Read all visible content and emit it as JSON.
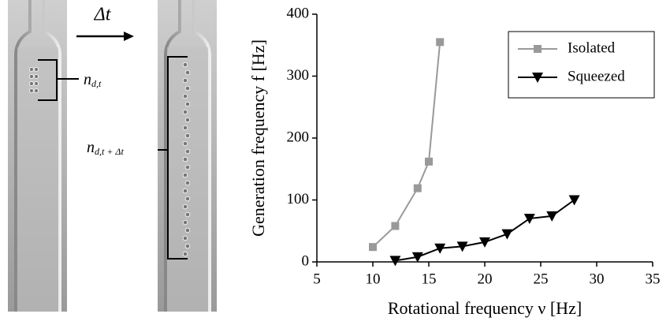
{
  "annotations": {
    "arrow_label": "Δt",
    "count_before": {
      "base": "n",
      "sub": "d,t"
    },
    "count_after": {
      "base": "n",
      "sub": "d,t + Δt"
    }
  },
  "chart_data": {
    "type": "line",
    "x_label": "Rotational frequency ν [Hz]",
    "y_label": "Generation frequency f [Hz]",
    "xlim": [
      5,
      35
    ],
    "xticks": [
      5,
      10,
      15,
      20,
      25,
      30,
      35
    ],
    "ylim": [
      0,
      400
    ],
    "yticks": [
      0,
      100,
      200,
      300,
      400
    ],
    "grid": false,
    "legend": "upper right",
    "series": [
      {
        "name": "Isolated",
        "color": "#999999",
        "marker": "square",
        "x": [
          10,
          12,
          14,
          15,
          16
        ],
        "values": [
          24,
          58,
          119,
          162,
          355
        ]
      },
      {
        "name": "Squeezed",
        "color": "#000000",
        "marker": "triangle-down",
        "x": [
          12,
          14,
          16,
          18,
          20,
          22,
          24,
          26,
          28
        ],
        "values": [
          2,
          8,
          22,
          25,
          32,
          45,
          70,
          74,
          100
        ]
      }
    ]
  }
}
